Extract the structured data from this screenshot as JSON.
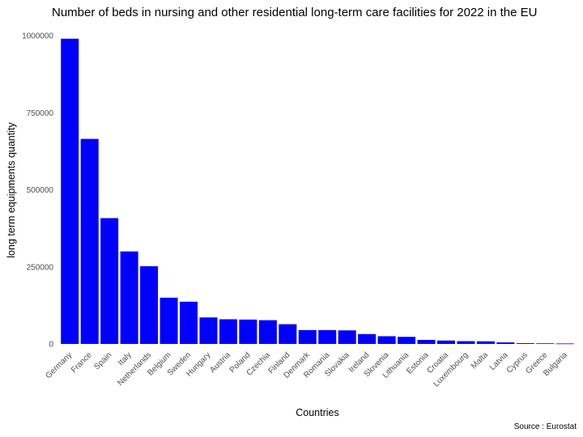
{
  "chart_data": {
    "type": "bar",
    "title": "Number of beds in nursing and other residential long-term care facilities for 2022 in the EU",
    "xlabel": "Countries",
    "ylabel": "long term equipments quantity",
    "caption": "Source : Eurostat",
    "bar_color": "#0000ff",
    "ylim": [
      0,
      1000000
    ],
    "yticks": [
      0,
      250000,
      500000,
      750000,
      1000000
    ],
    "ytick_labels": [
      "0",
      "250000",
      "500000",
      "750000",
      "1000000"
    ],
    "grid": false,
    "categories": [
      "Germany",
      "France",
      "Spain",
      "Italy",
      "Netherlands",
      "Belgium",
      "Sweden",
      "Hungary",
      "Austria",
      "Poland",
      "Czechia",
      "Finland",
      "Denmark",
      "Romania",
      "Slovakia",
      "Ireland",
      "Slovenia",
      "Lithuania",
      "Estonia",
      "Croatia",
      "Luxembourg",
      "Malta",
      "Latvia",
      "Cyprus",
      "Greece",
      "Bulgaria"
    ],
    "values": [
      990000,
      665000,
      408000,
      300000,
      252000,
      150000,
      137000,
      86000,
      80000,
      79000,
      77000,
      64000,
      45000,
      45000,
      44000,
      32000,
      25000,
      23000,
      13000,
      11000,
      9000,
      8500,
      5000,
      2500,
      2000,
      1500
    ]
  }
}
